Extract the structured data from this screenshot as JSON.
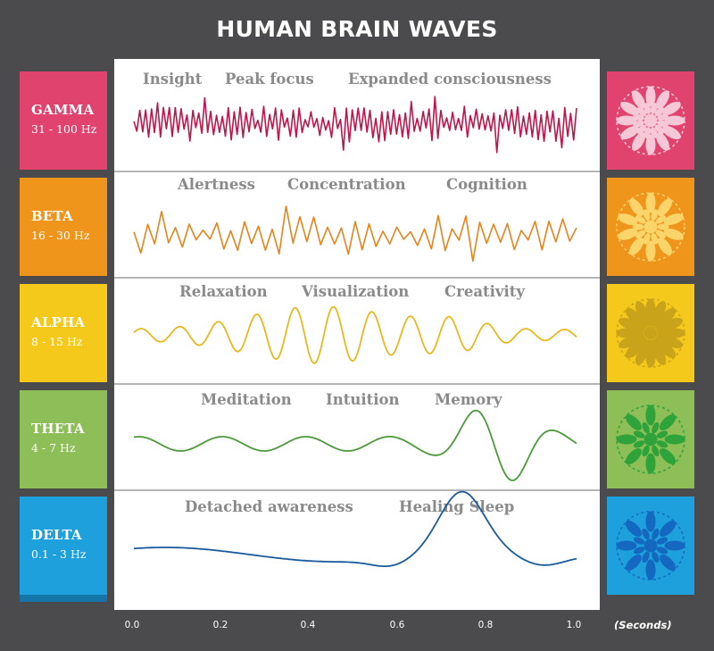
{
  "title": "HUMAN BRAIN WAVES",
  "axis_unit": "(Seconds)",
  "bands": [
    {
      "name": "GAMMA",
      "range": "31 - 100 Hz",
      "color": "#e0436e",
      "wave_color": "#c0144a",
      "icon": "gamma-mandala-icon",
      "keywords": [
        "Insight",
        "Peak focus",
        "Expanded consciousness"
      ]
    },
    {
      "name": "BETA",
      "range": "16 - 30 Hz",
      "color": "#f0951c",
      "wave_color": "#e8821a",
      "icon": "beta-mandala-icon",
      "keywords": [
        "Alertness",
        "Concentration",
        "Cognition"
      ]
    },
    {
      "name": "ALPHA",
      "range": "8 - 15 Hz",
      "color": "#f5c81c",
      "wave_color": "#eab412",
      "icon": "alpha-mandala-icon",
      "keywords": [
        "Relaxation",
        "Visualization",
        "Creativity"
      ]
    },
    {
      "name": "THETA",
      "range": "4 - 7 Hz",
      "color": "#8dbe58",
      "wave_color": "#4b9a3a",
      "icon": "theta-mandala-icon",
      "keywords": [
        "Meditation",
        "Intuition",
        "Memory"
      ]
    },
    {
      "name": "DELTA",
      "range": "0.1 - 3 Hz",
      "color": "#1ea0dc",
      "wave_color": "#1a5a9a",
      "icon": "delta-mandala-icon",
      "keywords": [
        "Detached awareness",
        "Healing Sleep"
      ]
    }
  ],
  "x_ticks": [
    "0.0",
    "0.2",
    "0.4",
    "0.6",
    "0.8",
    "1.0"
  ]
}
